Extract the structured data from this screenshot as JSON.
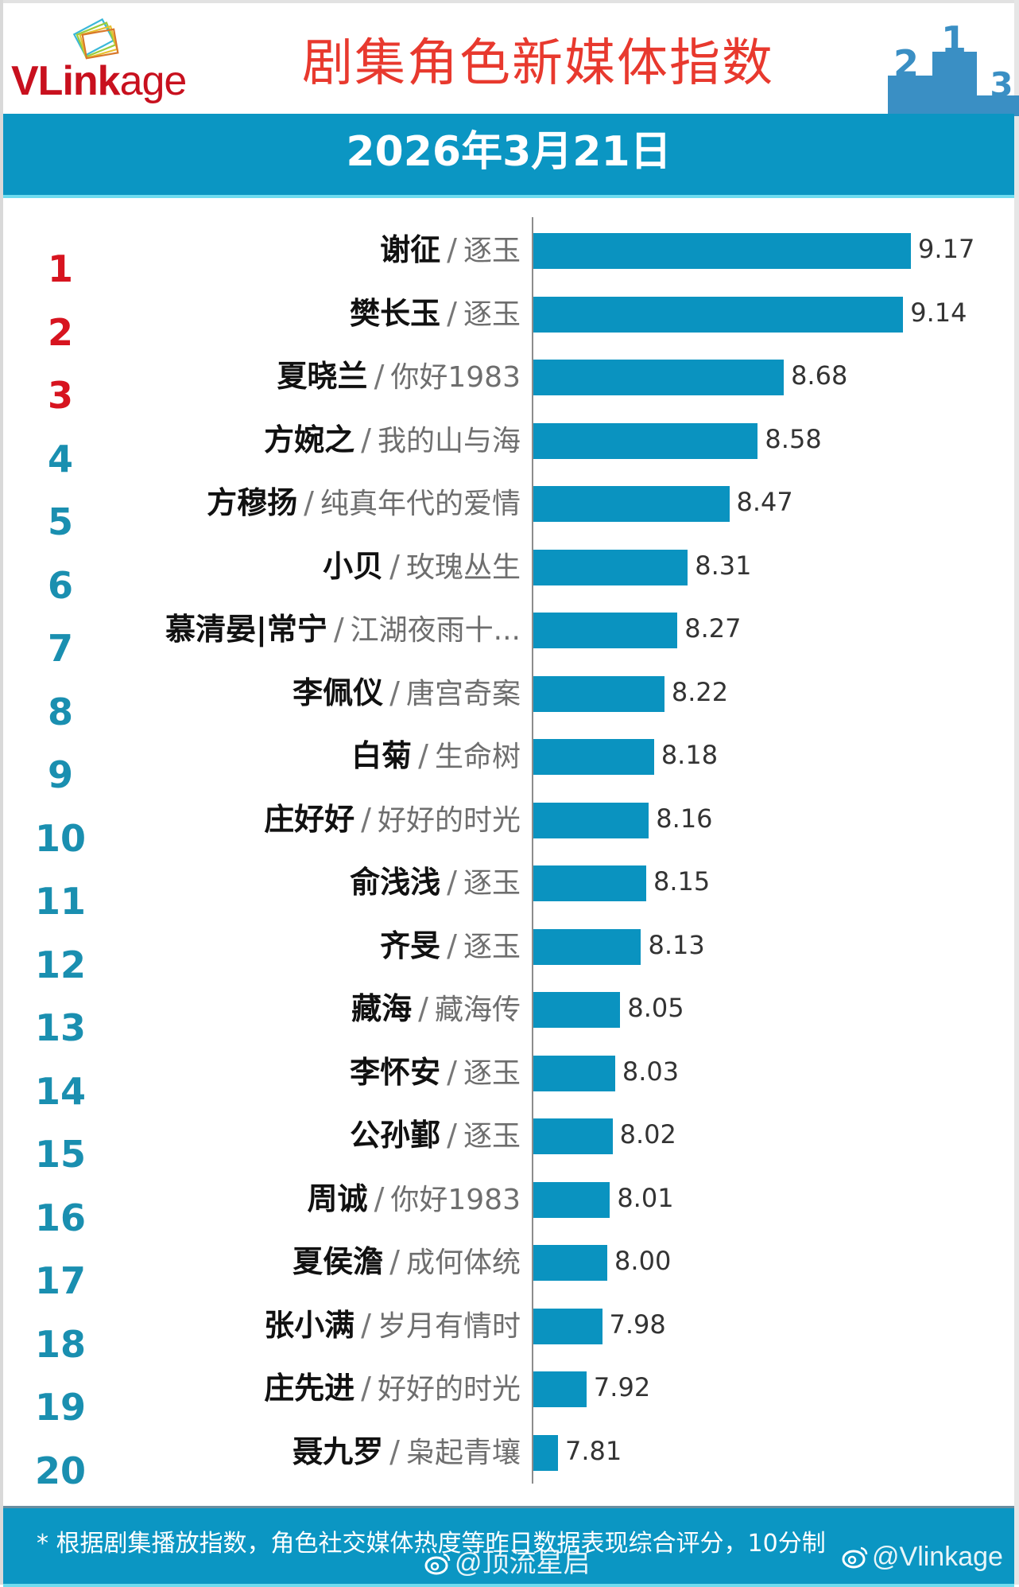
{
  "header": {
    "logo_text_bold": "VLink",
    "logo_text_light": "age",
    "title": "剧集角色新媒体指数",
    "date": "2026年3月21日",
    "podium_icon": "podium-icon",
    "podium_labels": [
      "2",
      "1",
      "3"
    ]
  },
  "colors": {
    "bar": "#0a93c0",
    "band": "#0b96c3",
    "title_red": "#e8392e",
    "rank_top3": "#d7141f",
    "rank_other": "#1a8fb0"
  },
  "chart_data": {
    "type": "bar",
    "orientation": "horizontal",
    "title": "剧集角色新媒体指数",
    "subtitle": "2026年3月21日",
    "xlabel": "",
    "ylabel": "",
    "grid": false,
    "legend": null,
    "categories": [
      "谢征 / 逐玉",
      "樊长玉 / 逐玉",
      "夏晓兰 / 你好1983",
      "方婉之 / 我的山与海",
      "方穆扬 / 纯真年代的爱情",
      "小贝 / 玫瑰丛生",
      "慕清晏|常宁 / 江湖夜雨十...",
      "李佩仪 / 唐宫奇案",
      "白菊 / 生命树",
      "庄好好 / 好好的时光",
      "俞浅浅 / 逐玉",
      "齐旻 / 逐玉",
      "藏海 / 藏海传",
      "李怀安 / 逐玉",
      "公孙鄞 / 逐玉",
      "周诚 / 你好1983",
      "夏侯澹 / 成何体统",
      "张小满 / 岁月有情时",
      "庄先进 / 好好的时光",
      "聂九罗 / 枭起青壤"
    ],
    "values": [
      9.17,
      9.14,
      8.68,
      8.58,
      8.47,
      8.31,
      8.27,
      8.22,
      8.18,
      8.16,
      8.15,
      8.13,
      8.05,
      8.03,
      8.02,
      8.01,
      8.0,
      7.98,
      7.92,
      7.81
    ],
    "xlim": [
      7.715,
      9.5
    ]
  },
  "rows": [
    {
      "rank": "1",
      "name": "谢征",
      "show": "逐玉",
      "value": "9.17",
      "v": 9.17
    },
    {
      "rank": "2",
      "name": "樊长玉",
      "show": "逐玉",
      "value": "9.14",
      "v": 9.14
    },
    {
      "rank": "3",
      "name": "夏晓兰",
      "show": "你好1983",
      "value": "8.68",
      "v": 8.68
    },
    {
      "rank": "4",
      "name": "方婉之",
      "show": "我的山与海",
      "value": "8.58",
      "v": 8.58
    },
    {
      "rank": "5",
      "name": "方穆扬",
      "show": "纯真年代的爱情",
      "value": "8.47",
      "v": 8.47
    },
    {
      "rank": "6",
      "name": "小贝",
      "show": "玫瑰丛生",
      "value": "8.31",
      "v": 8.31
    },
    {
      "rank": "7",
      "name": "慕清晏|常宁",
      "show": "江湖夜雨十...",
      "value": "8.27",
      "v": 8.27
    },
    {
      "rank": "8",
      "name": "李佩仪",
      "show": "唐宫奇案",
      "value": "8.22",
      "v": 8.22
    },
    {
      "rank": "9",
      "name": "白菊",
      "show": "生命树",
      "value": "8.18",
      "v": 8.18
    },
    {
      "rank": "10",
      "name": "庄好好",
      "show": "好好的时光",
      "value": "8.16",
      "v": 8.16
    },
    {
      "rank": "11",
      "name": "俞浅浅",
      "show": "逐玉",
      "value": "8.15",
      "v": 8.15
    },
    {
      "rank": "12",
      "name": "齐旻",
      "show": "逐玉",
      "value": "8.13",
      "v": 8.13
    },
    {
      "rank": "13",
      "name": "藏海",
      "show": "藏海传",
      "value": "8.05",
      "v": 8.05
    },
    {
      "rank": "14",
      "name": "李怀安",
      "show": "逐玉",
      "value": "8.03",
      "v": 8.03
    },
    {
      "rank": "15",
      "name": "公孙鄞",
      "show": "逐玉",
      "value": "8.02",
      "v": 8.02
    },
    {
      "rank": "16",
      "name": "周诚",
      "show": "你好1983",
      "value": "8.01",
      "v": 8.01
    },
    {
      "rank": "17",
      "name": "夏侯澹",
      "show": "成何体统",
      "value": "8.00",
      "v": 8.0
    },
    {
      "rank": "18",
      "name": "张小满",
      "show": "岁月有情时",
      "value": "7.98",
      "v": 7.98
    },
    {
      "rank": "19",
      "name": "庄先进",
      "show": "好好的时光",
      "value": "7.92",
      "v": 7.92
    },
    {
      "rank": "20",
      "name": "聂九罗",
      "show": "枭起青壤",
      "value": "7.81",
      "v": 7.81
    }
  ],
  "separator": "/",
  "footer": {
    "note": "* 根据剧集播放指数，角色社交媒体热度等昨日数据表现综合评分，10分制",
    "watermarks": [
      "@顶流星启",
      "@Vlinkage"
    ]
  }
}
